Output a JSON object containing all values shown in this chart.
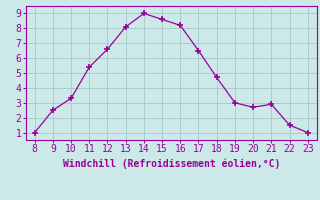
{
  "x": [
    8,
    9,
    10,
    11,
    12,
    13,
    14,
    15,
    16,
    17,
    18,
    19,
    20,
    21,
    22,
    23
  ],
  "y": [
    1,
    2.5,
    3.3,
    5.4,
    6.6,
    8.1,
    9.0,
    8.6,
    8.2,
    6.5,
    4.7,
    3.0,
    2.7,
    2.9,
    1.5,
    1.0
  ],
  "line_color": "#990099",
  "marker": "+",
  "marker_size": 5,
  "marker_linewidth": 1.2,
  "background_color": "#cce8e8",
  "grid_color": "#aacccc",
  "xlabel": "Windchill (Refroidissement éolien,°C)",
  "xlabel_color": "#990099",
  "xlim": [
    7.5,
    23.5
  ],
  "ylim": [
    0.5,
    9.5
  ],
  "xticks": [
    8,
    9,
    10,
    11,
    12,
    13,
    14,
    15,
    16,
    17,
    18,
    19,
    20,
    21,
    22,
    23
  ],
  "yticks": [
    1,
    2,
    3,
    4,
    5,
    6,
    7,
    8,
    9
  ],
  "tick_color": "#990099",
  "spine_color": "#990099",
  "tick_fontsize": 7,
  "xlabel_fontsize": 7
}
